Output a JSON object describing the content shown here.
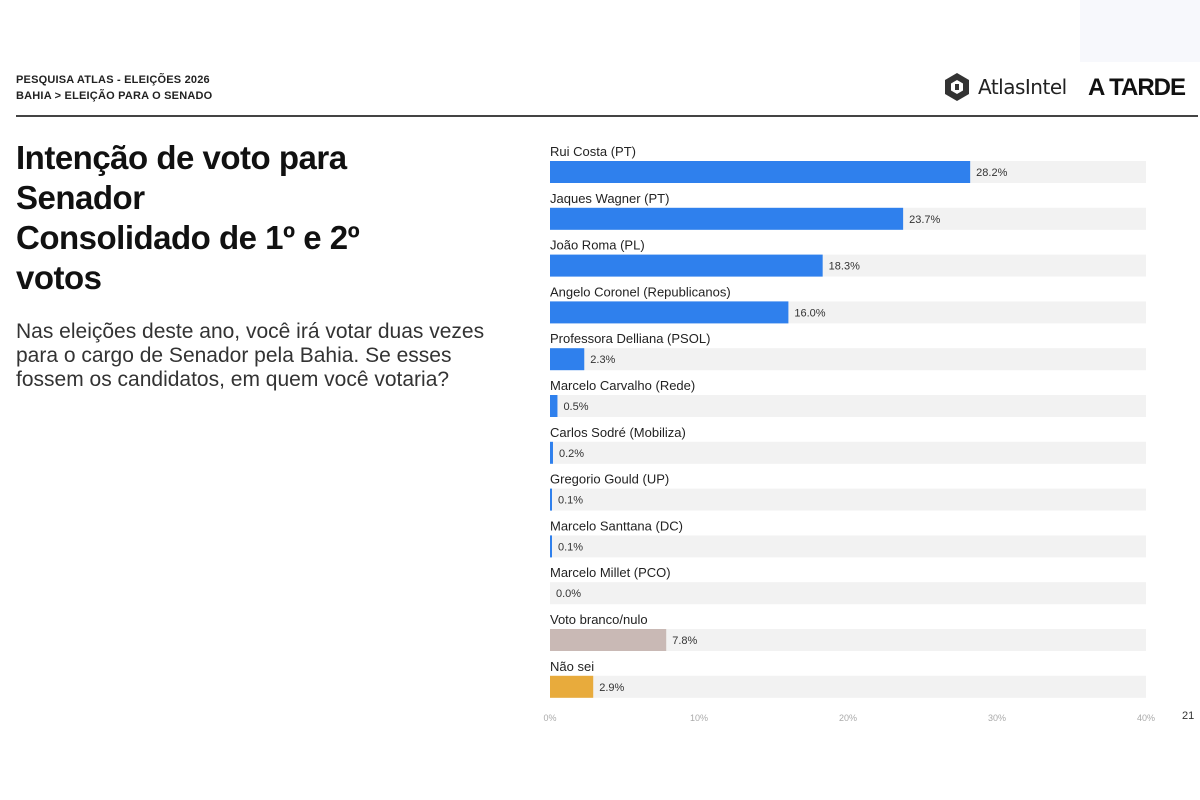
{
  "header": {
    "line1": "PESQUISA ATLAS - ELEIÇÕES 2026",
    "line2": "BAHIA > ELEIÇÃO PARA O SENADO"
  },
  "logos": {
    "atlas": "AtlasIntel",
    "atarde": "A TARDE"
  },
  "title": "Intenção de voto para\nSenador\nConsolidado de 1º e 2º\nvotos",
  "question": "Nas eleições deste ano, você irá votar duas vezes para o cargo de Senador pela Bahia. Se esses fossem os candidatos, em quem você votaria?",
  "page_number": "21",
  "colors": {
    "candidate": "#2f80ed",
    "branco_nulo": "#c9b9b5",
    "nao_sei": "#e8ab3c",
    "track": "#f2f2f2"
  },
  "chart_data": {
    "type": "bar",
    "orientation": "horizontal",
    "categories": [
      "Rui Costa (PT)",
      "Jaques Wagner (PT)",
      "João Roma (PL)",
      "Angelo Coronel (Republicanos)",
      "Professora Delliana (PSOL)",
      "Marcelo Carvalho (Rede)",
      "Carlos Sodré (Mobiliza)",
      "Gregorio Gould (UP)",
      "Marcelo Santtana (DC)",
      "Marcelo Millet (PCO)",
      "Voto branco/nulo",
      "Não sei"
    ],
    "values": [
      28.2,
      23.7,
      18.3,
      16.0,
      2.3,
      0.5,
      0.2,
      0.1,
      0.1,
      0.0,
      7.8,
      2.9
    ],
    "value_labels": [
      "28.2%",
      "23.7%",
      "18.3%",
      "16.0%",
      "2.3%",
      "0.5%",
      "0.2%",
      "0.1%",
      "0.1%",
      "0.0%",
      "7.8%",
      "2.9%"
    ],
    "bar_colors": [
      "#2f80ed",
      "#2f80ed",
      "#2f80ed",
      "#2f80ed",
      "#2f80ed",
      "#2f80ed",
      "#2f80ed",
      "#2f80ed",
      "#2f80ed",
      "#2f80ed",
      "#c9b9b5",
      "#e8ab3c"
    ],
    "xlim": [
      0,
      40
    ],
    "x_ticks": [
      "0%",
      "10%",
      "20%",
      "30%",
      "40%"
    ],
    "grid": false
  }
}
